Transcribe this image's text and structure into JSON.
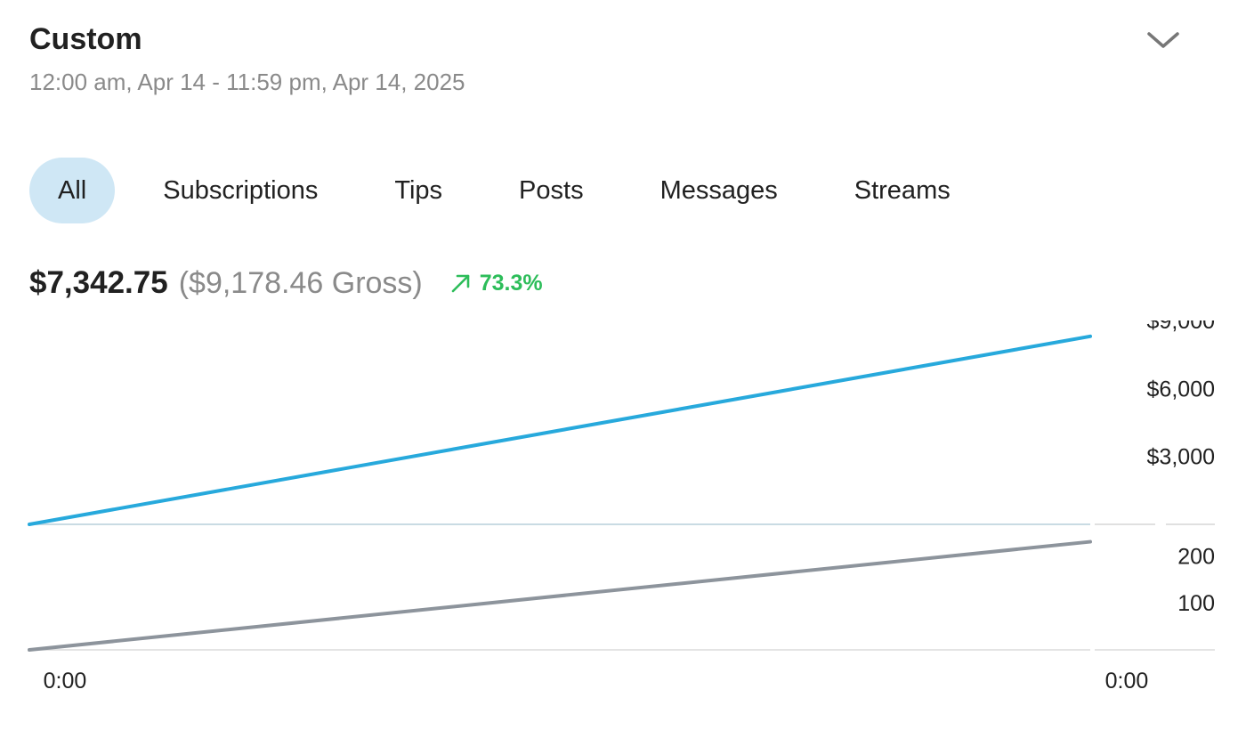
{
  "header": {
    "title": "Custom",
    "date_range": "12:00 am, Apr 14 - 11:59 pm, Apr 14, 2025",
    "dropdown_icon": "chevron-down-icon"
  },
  "tabs": [
    {
      "label": "All",
      "active": true
    },
    {
      "label": "Subscriptions",
      "active": false
    },
    {
      "label": "Tips",
      "active": false
    },
    {
      "label": "Posts",
      "active": false
    },
    {
      "label": "Messages",
      "active": false
    },
    {
      "label": "Streams",
      "active": false
    }
  ],
  "summary": {
    "net": "$7,342.75",
    "gross": "($9,178.46 Gross)",
    "change": "73.3%",
    "change_icon": "arrow-up-right-icon",
    "change_color": "#2dbd5a"
  },
  "colors": {
    "active_tab_bg": "#cfe7f5",
    "earnings_line": "#27a9dc",
    "count_line": "#8d949c",
    "baseline": "#c9dbe3"
  },
  "chart_data": [
    {
      "type": "line",
      "x": [
        "0:00",
        "0:00"
      ],
      "series": [
        {
          "values": [
            0,
            8300
          ]
        }
      ],
      "ylim": [
        0,
        9000
      ],
      "yticks": [
        "$9,000",
        "$6,000",
        "$3,000"
      ],
      "grid": false
    },
    {
      "type": "line",
      "x": [
        "0:00",
        "0:00"
      ],
      "series": [
        {
          "values": [
            0,
            230
          ]
        }
      ],
      "ylim": [
        0,
        250
      ],
      "yticks": [
        "200",
        "100"
      ],
      "xticks": [
        "0:00",
        "0:00"
      ],
      "grid": false
    }
  ]
}
